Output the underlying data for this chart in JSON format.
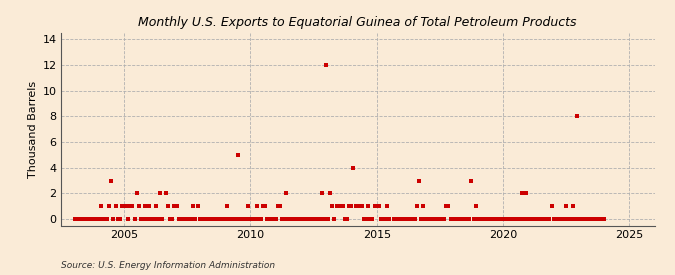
{
  "title": "Monthly U.S. Exports to Equatorial Guinea of Total Petroleum Products",
  "ylabel": "Thousand Barrels",
  "source": "Source: U.S. Energy Information Administration",
  "bg_color": "#faebd7",
  "plot_bg_color": "#faebd7",
  "marker_color": "#cc0000",
  "xlim": [
    2002.5,
    2026.0
  ],
  "ylim": [
    -0.5,
    14.5
  ],
  "yticks": [
    0,
    2,
    4,
    6,
    8,
    10,
    12,
    14
  ],
  "xticks": [
    2005,
    2010,
    2015,
    2020,
    2025
  ],
  "data": [
    [
      2003.08,
      0
    ],
    [
      2003.17,
      0
    ],
    [
      2003.25,
      0
    ],
    [
      2003.33,
      0
    ],
    [
      2003.42,
      0
    ],
    [
      2003.5,
      0
    ],
    [
      2003.58,
      0
    ],
    [
      2003.67,
      0
    ],
    [
      2003.75,
      0
    ],
    [
      2003.83,
      0
    ],
    [
      2003.92,
      0
    ],
    [
      2004.0,
      0
    ],
    [
      2004.08,
      1
    ],
    [
      2004.17,
      0
    ],
    [
      2004.25,
      0
    ],
    [
      2004.33,
      0
    ],
    [
      2004.42,
      1
    ],
    [
      2004.5,
      3
    ],
    [
      2004.58,
      0
    ],
    [
      2004.67,
      1
    ],
    [
      2004.75,
      0
    ],
    [
      2004.83,
      0
    ],
    [
      2004.92,
      1
    ],
    [
      2005.0,
      1
    ],
    [
      2005.08,
      1
    ],
    [
      2005.17,
      0
    ],
    [
      2005.25,
      1
    ],
    [
      2005.33,
      1
    ],
    [
      2005.42,
      0
    ],
    [
      2005.5,
      2
    ],
    [
      2005.58,
      1
    ],
    [
      2005.67,
      0
    ],
    [
      2005.75,
      0
    ],
    [
      2005.83,
      1
    ],
    [
      2005.92,
      0
    ],
    [
      2006.0,
      1
    ],
    [
      2006.08,
      0
    ],
    [
      2006.17,
      0
    ],
    [
      2006.25,
      1
    ],
    [
      2006.33,
      0
    ],
    [
      2006.42,
      2
    ],
    [
      2006.5,
      0
    ],
    [
      2006.67,
      2
    ],
    [
      2006.75,
      1
    ],
    [
      2006.83,
      0
    ],
    [
      2006.92,
      0
    ],
    [
      2007.0,
      1
    ],
    [
      2007.08,
      1
    ],
    [
      2007.17,
      0
    ],
    [
      2007.25,
      0
    ],
    [
      2007.33,
      0
    ],
    [
      2007.42,
      0
    ],
    [
      2007.5,
      0
    ],
    [
      2007.58,
      0
    ],
    [
      2007.67,
      0
    ],
    [
      2007.75,
      1
    ],
    [
      2007.83,
      0
    ],
    [
      2007.92,
      1
    ],
    [
      2008.0,
      0
    ],
    [
      2008.08,
      0
    ],
    [
      2008.17,
      0
    ],
    [
      2008.25,
      0
    ],
    [
      2008.33,
      0
    ],
    [
      2008.42,
      0
    ],
    [
      2008.5,
      0
    ],
    [
      2008.58,
      0
    ],
    [
      2008.67,
      0
    ],
    [
      2008.75,
      0
    ],
    [
      2008.83,
      0
    ],
    [
      2008.92,
      0
    ],
    [
      2009.0,
      0
    ],
    [
      2009.08,
      1
    ],
    [
      2009.17,
      0
    ],
    [
      2009.25,
      0
    ],
    [
      2009.33,
      0
    ],
    [
      2009.42,
      0
    ],
    [
      2009.5,
      5
    ],
    [
      2009.58,
      0
    ],
    [
      2009.67,
      0
    ],
    [
      2009.75,
      0
    ],
    [
      2009.83,
      0
    ],
    [
      2009.92,
      1
    ],
    [
      2010.0,
      0
    ],
    [
      2010.08,
      0
    ],
    [
      2010.17,
      0
    ],
    [
      2010.25,
      1
    ],
    [
      2010.33,
      0
    ],
    [
      2010.42,
      0
    ],
    [
      2010.5,
      1
    ],
    [
      2010.58,
      1
    ],
    [
      2010.67,
      0
    ],
    [
      2010.75,
      0
    ],
    [
      2010.83,
      0
    ],
    [
      2010.92,
      0
    ],
    [
      2011.0,
      0
    ],
    [
      2011.08,
      1
    ],
    [
      2011.17,
      1
    ],
    [
      2011.25,
      0
    ],
    [
      2011.33,
      0
    ],
    [
      2011.42,
      2
    ],
    [
      2011.5,
      0
    ],
    [
      2011.58,
      0
    ],
    [
      2011.67,
      0
    ],
    [
      2011.75,
      0
    ],
    [
      2011.83,
      0
    ],
    [
      2011.92,
      0
    ],
    [
      2012.0,
      0
    ],
    [
      2012.08,
      0
    ],
    [
      2012.17,
      0
    ],
    [
      2012.25,
      0
    ],
    [
      2012.33,
      0
    ],
    [
      2012.42,
      0
    ],
    [
      2012.5,
      0
    ],
    [
      2012.58,
      0
    ],
    [
      2012.67,
      0
    ],
    [
      2012.75,
      0
    ],
    [
      2012.83,
      2
    ],
    [
      2012.92,
      0
    ],
    [
      2013.0,
      12
    ],
    [
      2013.08,
      0
    ],
    [
      2013.17,
      2
    ],
    [
      2013.25,
      1
    ],
    [
      2013.33,
      0
    ],
    [
      2013.42,
      1
    ],
    [
      2013.5,
      1
    ],
    [
      2013.58,
      1
    ],
    [
      2013.67,
      1
    ],
    [
      2013.75,
      0
    ],
    [
      2013.83,
      0
    ],
    [
      2013.92,
      1
    ],
    [
      2014.0,
      1
    ],
    [
      2014.08,
      4
    ],
    [
      2014.17,
      1
    ],
    [
      2014.25,
      1
    ],
    [
      2014.33,
      1
    ],
    [
      2014.42,
      1
    ],
    [
      2014.5,
      0
    ],
    [
      2014.58,
      0
    ],
    [
      2014.67,
      1
    ],
    [
      2014.75,
      0
    ],
    [
      2014.83,
      0
    ],
    [
      2014.92,
      1
    ],
    [
      2015.0,
      1
    ],
    [
      2015.08,
      1
    ],
    [
      2015.17,
      0
    ],
    [
      2015.25,
      0
    ],
    [
      2015.33,
      0
    ],
    [
      2015.42,
      1
    ],
    [
      2015.5,
      0
    ],
    [
      2015.67,
      0
    ],
    [
      2015.75,
      0
    ],
    [
      2015.83,
      0
    ],
    [
      2015.92,
      0
    ],
    [
      2016.0,
      0
    ],
    [
      2016.08,
      0
    ],
    [
      2016.17,
      0
    ],
    [
      2016.25,
      0
    ],
    [
      2016.33,
      0
    ],
    [
      2016.42,
      0
    ],
    [
      2016.5,
      0
    ],
    [
      2016.58,
      1
    ],
    [
      2016.67,
      3
    ],
    [
      2016.75,
      0
    ],
    [
      2016.83,
      1
    ],
    [
      2016.92,
      0
    ],
    [
      2017.0,
      0
    ],
    [
      2017.08,
      0
    ],
    [
      2017.17,
      0
    ],
    [
      2017.25,
      0
    ],
    [
      2017.33,
      0
    ],
    [
      2017.42,
      0
    ],
    [
      2017.5,
      0
    ],
    [
      2017.58,
      0
    ],
    [
      2017.67,
      0
    ],
    [
      2017.75,
      1
    ],
    [
      2017.83,
      1
    ],
    [
      2017.92,
      0
    ],
    [
      2018.0,
      0
    ],
    [
      2018.08,
      0
    ],
    [
      2018.17,
      0
    ],
    [
      2018.25,
      0
    ],
    [
      2018.33,
      0
    ],
    [
      2018.42,
      0
    ],
    [
      2018.5,
      0
    ],
    [
      2018.58,
      0
    ],
    [
      2018.67,
      0
    ],
    [
      2018.75,
      3
    ],
    [
      2018.83,
      0
    ],
    [
      2018.92,
      1
    ],
    [
      2019.0,
      0
    ],
    [
      2019.08,
      0
    ],
    [
      2019.17,
      0
    ],
    [
      2019.25,
      0
    ],
    [
      2019.33,
      0
    ],
    [
      2019.42,
      0
    ],
    [
      2019.5,
      0
    ],
    [
      2019.58,
      0
    ],
    [
      2019.67,
      0
    ],
    [
      2019.75,
      0
    ],
    [
      2019.83,
      0
    ],
    [
      2019.92,
      0
    ],
    [
      2020.0,
      0
    ],
    [
      2020.08,
      0
    ],
    [
      2020.17,
      0
    ],
    [
      2020.25,
      0
    ],
    [
      2020.33,
      0
    ],
    [
      2020.42,
      0
    ],
    [
      2020.5,
      0
    ],
    [
      2020.58,
      0
    ],
    [
      2020.67,
      0
    ],
    [
      2020.75,
      2
    ],
    [
      2020.83,
      0
    ],
    [
      2020.92,
      2
    ],
    [
      2021.0,
      0
    ],
    [
      2021.08,
      0
    ],
    [
      2021.17,
      0
    ],
    [
      2021.25,
      0
    ],
    [
      2021.33,
      0
    ],
    [
      2021.42,
      0
    ],
    [
      2021.5,
      0
    ],
    [
      2021.58,
      0
    ],
    [
      2021.67,
      0
    ],
    [
      2021.75,
      0
    ],
    [
      2021.83,
      0
    ],
    [
      2021.92,
      1
    ],
    [
      2022.0,
      0
    ],
    [
      2022.08,
      0
    ],
    [
      2022.17,
      0
    ],
    [
      2022.25,
      0
    ],
    [
      2022.33,
      0
    ],
    [
      2022.42,
      0
    ],
    [
      2022.5,
      1
    ],
    [
      2022.58,
      0
    ],
    [
      2022.67,
      0
    ],
    [
      2022.75,
      1
    ],
    [
      2022.83,
      0
    ],
    [
      2022.92,
      8
    ],
    [
      2023.0,
      0
    ],
    [
      2023.08,
      0
    ],
    [
      2023.17,
      0
    ],
    [
      2023.25,
      0
    ],
    [
      2023.33,
      0
    ],
    [
      2023.42,
      0
    ],
    [
      2023.5,
      0
    ],
    [
      2023.58,
      0
    ],
    [
      2023.67,
      0
    ],
    [
      2023.75,
      0
    ],
    [
      2023.83,
      0
    ],
    [
      2023.92,
      0
    ],
    [
      2024.0,
      0
    ]
  ]
}
